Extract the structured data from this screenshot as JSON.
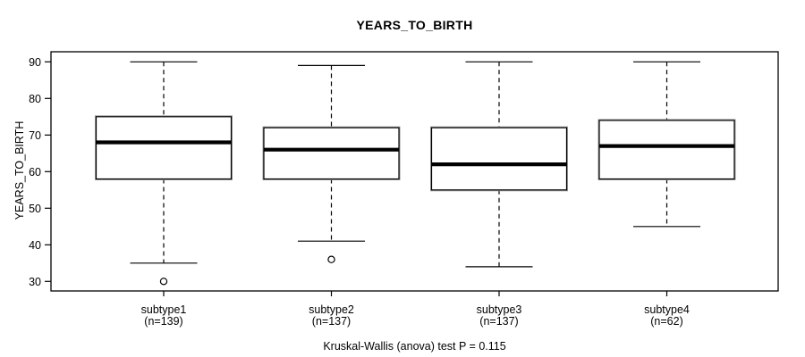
{
  "title": "YEARS_TO_BIRTH",
  "y_axis_label": "YEARS_TO_BIRTH",
  "caption": "Kruskal-Wallis (anova) test P = 0.115",
  "colors": {
    "line": "#000000",
    "background": "#ffffff"
  },
  "chart_data": {
    "type": "boxplot",
    "title": "YEARS_TO_BIRTH",
    "ylabel": "YEARS_TO_BIRTH",
    "xlabel": "",
    "ylim": [
      30,
      90
    ],
    "y_ticks": [
      30,
      40,
      50,
      60,
      70,
      80,
      90
    ],
    "grid": false,
    "categories": [
      "subtype1",
      "subtype2",
      "subtype3",
      "subtype4"
    ],
    "category_sublabels": [
      "(n=139)",
      "(n=137)",
      "(n=137)",
      "(n=62)"
    ],
    "boxes": [
      {
        "label": "subtype1",
        "sublabel": "(n=139)",
        "n": 139,
        "whisker_low": 35,
        "q1": 58,
        "median": 68,
        "q3": 75,
        "whisker_high": 90,
        "outliers": [
          30
        ]
      },
      {
        "label": "subtype2",
        "sublabel": "(n=137)",
        "n": 137,
        "whisker_low": 41,
        "q1": 58,
        "median": 66,
        "q3": 72,
        "whisker_high": 89,
        "outliers": [
          36
        ]
      },
      {
        "label": "subtype3",
        "sublabel": "(n=137)",
        "n": 137,
        "whisker_low": 34,
        "q1": 55,
        "median": 62,
        "q3": 72,
        "whisker_high": 90,
        "outliers": []
      },
      {
        "label": "subtype4",
        "sublabel": "(n=62)",
        "n": 62,
        "whisker_low": 45,
        "q1": 58,
        "median": 67,
        "q3": 74,
        "whisker_high": 90,
        "outliers": []
      }
    ],
    "annotation": "Kruskal-Wallis (anova) test P = 0.115"
  }
}
